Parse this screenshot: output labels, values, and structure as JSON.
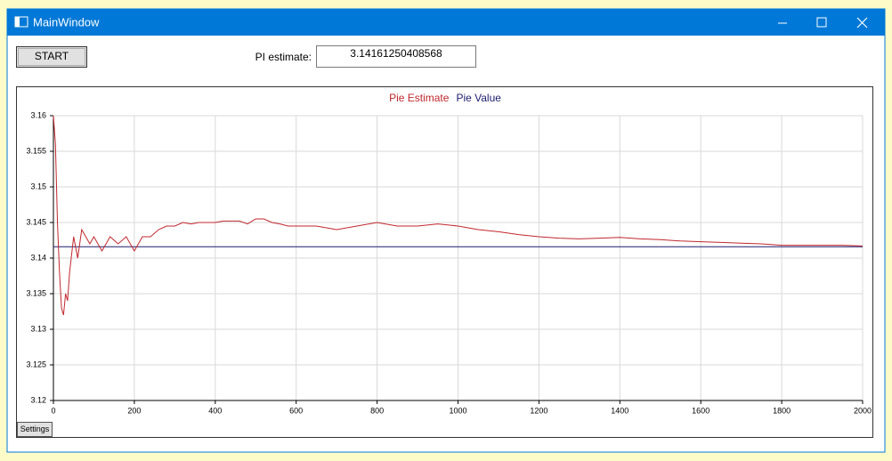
{
  "window": {
    "title": "MainWindow"
  },
  "controls": {
    "start_button": "START",
    "pi_label": "PI estimate:",
    "pi_value": "3.14161250408568",
    "settings_button": "Settings"
  },
  "chart_data": {
    "type": "line",
    "x": [
      0,
      5,
      10,
      15,
      20,
      25,
      30,
      35,
      40,
      50,
      60,
      70,
      80,
      90,
      100,
      120,
      140,
      160,
      180,
      200,
      220,
      240,
      260,
      280,
      300,
      320,
      340,
      360,
      380,
      400,
      420,
      440,
      460,
      480,
      500,
      520,
      540,
      560,
      580,
      600,
      650,
      700,
      750,
      800,
      850,
      900,
      950,
      1000,
      1050,
      1100,
      1150,
      1200,
      1250,
      1300,
      1350,
      1400,
      1450,
      1500,
      1550,
      1600,
      1650,
      1700,
      1750,
      1800,
      1850,
      1900,
      1950,
      2000
    ],
    "series": [
      {
        "name": "Pie Estimate",
        "color": "#c0272d",
        "values": [
          3.16,
          3.156,
          3.145,
          3.138,
          3.133,
          3.132,
          3.135,
          3.134,
          3.138,
          3.143,
          3.14,
          3.144,
          3.143,
          3.142,
          3.143,
          3.141,
          3.143,
          3.142,
          3.143,
          3.141,
          3.143,
          3.143,
          3.144,
          3.1445,
          3.1445,
          3.145,
          3.1448,
          3.145,
          3.145,
          3.145,
          3.1452,
          3.1452,
          3.1452,
          3.1448,
          3.1455,
          3.1455,
          3.145,
          3.1448,
          3.1445,
          3.1445,
          3.1445,
          3.144,
          3.1445,
          3.145,
          3.1445,
          3.1445,
          3.1448,
          3.1445,
          3.144,
          3.1437,
          3.1433,
          3.143,
          3.1428,
          3.1427,
          3.1428,
          3.1429,
          3.1427,
          3.1426,
          3.1424,
          3.1423,
          3.1422,
          3.1421,
          3.142,
          3.1418,
          3.1418,
          3.1418,
          3.1418,
          3.1417
        ]
      },
      {
        "name": "Pie Value",
        "color": "#1c1c6e",
        "values": [
          3.1416,
          3.1416,
          3.1416,
          3.1416,
          3.1416,
          3.1416,
          3.1416,
          3.1416,
          3.1416,
          3.1416,
          3.1416,
          3.1416,
          3.1416,
          3.1416,
          3.1416,
          3.1416,
          3.1416,
          3.1416,
          3.1416,
          3.1416,
          3.1416,
          3.1416,
          3.1416,
          3.1416,
          3.1416,
          3.1416,
          3.1416,
          3.1416,
          3.1416,
          3.1416,
          3.1416,
          3.1416,
          3.1416,
          3.1416,
          3.1416,
          3.1416,
          3.1416,
          3.1416,
          3.1416,
          3.1416,
          3.1416,
          3.1416,
          3.1416,
          3.1416,
          3.1416,
          3.1416,
          3.1416,
          3.1416,
          3.1416,
          3.1416,
          3.1416,
          3.1416,
          3.1416,
          3.1416,
          3.1416,
          3.1416,
          3.1416,
          3.1416,
          3.1416,
          3.1416,
          3.1416,
          3.1416,
          3.1416,
          3.1416,
          3.1416,
          3.1416,
          3.1416,
          3.1416
        ]
      }
    ],
    "xlim": [
      0,
      2000
    ],
    "xticks": [
      0,
      200,
      400,
      600,
      800,
      1000,
      1200,
      1400,
      1600,
      1800,
      2000
    ],
    "ylim": [
      3.12,
      3.16
    ],
    "yticks": [
      3.12,
      3.125,
      3.13,
      3.135,
      3.14,
      3.145,
      3.15,
      3.155,
      3.16
    ],
    "grid": true
  }
}
